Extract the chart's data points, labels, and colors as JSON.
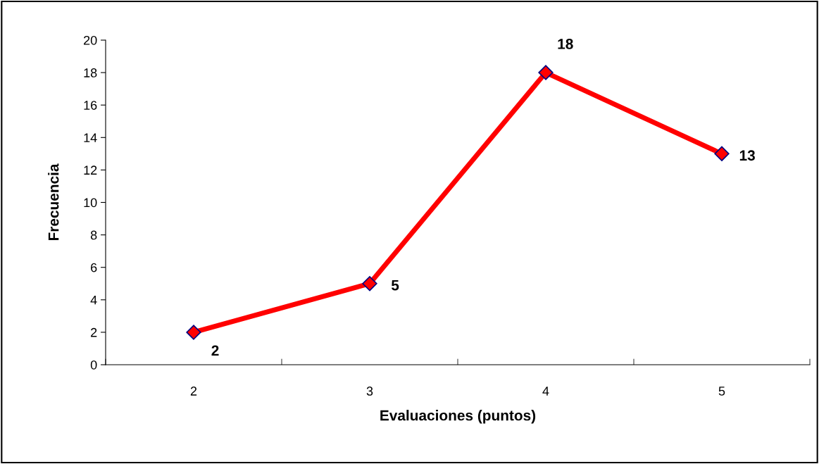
{
  "chart_data": {
    "type": "line",
    "xlabel": "Evaluaciones (puntos)",
    "ylabel": "Frecuencia",
    "categories": [
      "2",
      "3",
      "4",
      "5"
    ],
    "series": [
      {
        "color": "#ff0000",
        "values": [
          2,
          5,
          18,
          13
        ]
      }
    ],
    "ylim": [
      0,
      20
    ],
    "yticks": [
      0,
      2,
      4,
      6,
      8,
      10,
      12,
      14,
      16,
      18,
      20
    ],
    "marker": "diamond",
    "line_style": "solid",
    "grid": false,
    "legend": false,
    "data_labels": true
  }
}
